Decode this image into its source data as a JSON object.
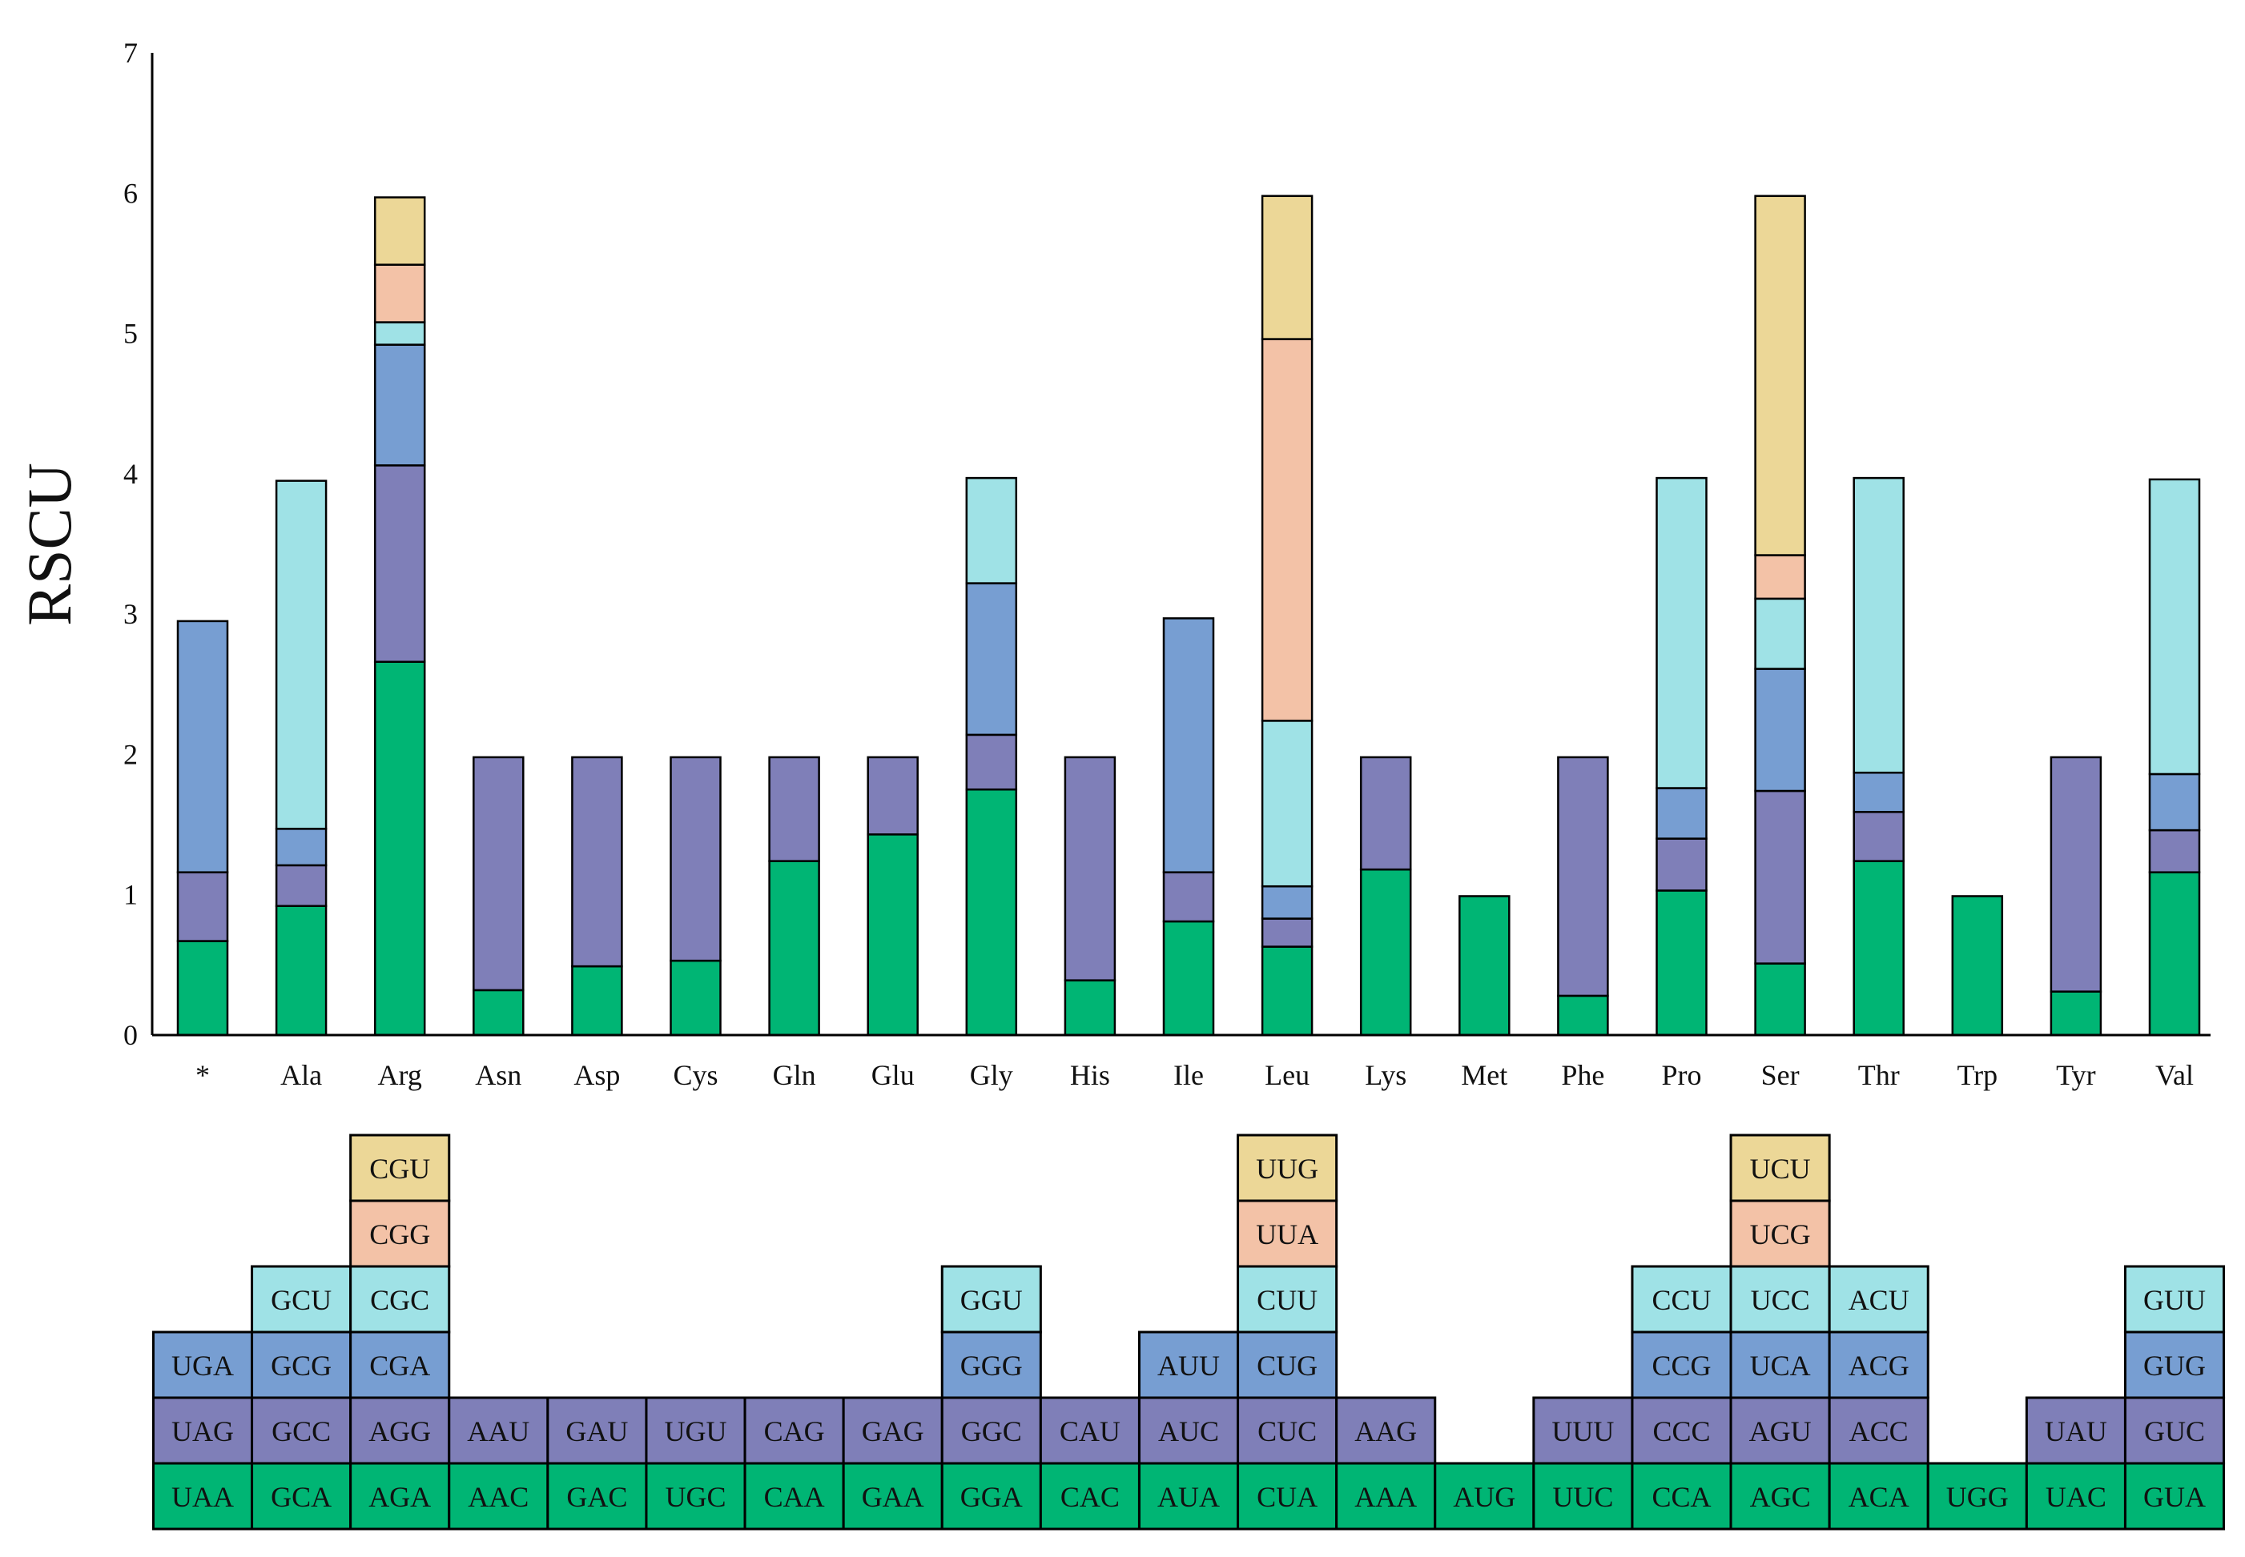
{
  "chart_data": {
    "type": "bar",
    "stacked": true,
    "title": "",
    "xlabel": "",
    "ylabel": "RSCU",
    "ylim": [
      0,
      7
    ],
    "yticks": [
      "0",
      "1",
      "2",
      "3",
      "4",
      "5",
      "6",
      "7"
    ],
    "categories": [
      "*",
      "Ala",
      "Arg",
      "Asn",
      "Asp",
      "Cys",
      "Gln",
      "Glu",
      "Gly",
      "His",
      "Ile",
      "Leu",
      "Lys",
      "Met",
      "Phe",
      "Pro",
      "Ser",
      "Thr",
      "Trp",
      "Tyr",
      "Val"
    ],
    "colors": [
      "#00b574",
      "#7f7fb8",
      "#779ed2",
      "#9fe2e6",
      "#f3c2a7",
      "#ecd797"
    ],
    "bars": [
      {
        "aa": "*",
        "stacks": [
          {
            "codon": "UAA",
            "value": 0.67
          },
          {
            "codon": "UAG",
            "value": 0.49
          },
          {
            "codon": "UGA",
            "value": 1.79
          }
        ]
      },
      {
        "aa": "Ala",
        "stacks": [
          {
            "codon": "GCA",
            "value": 0.92
          },
          {
            "codon": "GCC",
            "value": 0.29
          },
          {
            "codon": "GCG",
            "value": 0.26
          },
          {
            "codon": "GCU",
            "value": 2.48
          }
        ]
      },
      {
        "aa": "Arg",
        "stacks": [
          {
            "codon": "AGA",
            "value": 2.66
          },
          {
            "codon": "AGG",
            "value": 1.4
          },
          {
            "codon": "CGA",
            "value": 0.86
          },
          {
            "codon": "CGC",
            "value": 0.16
          },
          {
            "codon": "CGG",
            "value": 0.41
          },
          {
            "codon": "CGU",
            "value": 0.48
          }
        ]
      },
      {
        "aa": "Asn",
        "stacks": [
          {
            "codon": "AAC",
            "value": 0.32
          },
          {
            "codon": "AAU",
            "value": 1.66
          }
        ]
      },
      {
        "aa": "Asp",
        "stacks": [
          {
            "codon": "GAC",
            "value": 0.49
          },
          {
            "codon": "GAU",
            "value": 1.49
          }
        ]
      },
      {
        "aa": "Cys",
        "stacks": [
          {
            "codon": "UGC",
            "value": 0.53
          },
          {
            "codon": "UGU",
            "value": 1.45
          }
        ]
      },
      {
        "aa": "Gln",
        "stacks": [
          {
            "codon": "CAA",
            "value": 1.24
          },
          {
            "codon": "CAG",
            "value": 0.74
          }
        ]
      },
      {
        "aa": "Glu",
        "stacks": [
          {
            "codon": "GAA",
            "value": 1.43
          },
          {
            "codon": "GAG",
            "value": 0.55
          }
        ]
      },
      {
        "aa": "Gly",
        "stacks": [
          {
            "codon": "GGA",
            "value": 1.75
          },
          {
            "codon": "GGC",
            "value": 0.39
          },
          {
            "codon": "GGG",
            "value": 1.08
          },
          {
            "codon": "GGU",
            "value": 0.75
          }
        ]
      },
      {
        "aa": "His",
        "stacks": [
          {
            "codon": "CAC",
            "value": 0.39
          },
          {
            "codon": "CAU",
            "value": 1.59
          }
        ]
      },
      {
        "aa": "Ile",
        "stacks": [
          {
            "codon": "AUA",
            "value": 0.81
          },
          {
            "codon": "AUC",
            "value": 0.35
          },
          {
            "codon": "AUU",
            "value": 1.81
          }
        ]
      },
      {
        "aa": "Leu",
        "stacks": [
          {
            "codon": "CUA",
            "value": 0.63
          },
          {
            "codon": "CUC",
            "value": 0.2
          },
          {
            "codon": "CUG",
            "value": 0.23
          },
          {
            "codon": "CUU",
            "value": 1.18
          },
          {
            "codon": "UUA",
            "value": 2.72
          },
          {
            "codon": "UUG",
            "value": 1.02
          }
        ]
      },
      {
        "aa": "Lys",
        "stacks": [
          {
            "codon": "AAA",
            "value": 1.18
          },
          {
            "codon": "AAG",
            "value": 0.8
          }
        ]
      },
      {
        "aa": "Met",
        "stacks": [
          {
            "codon": "AUG",
            "value": 0.99
          }
        ]
      },
      {
        "aa": "Phe",
        "stacks": [
          {
            "codon": "UUC",
            "value": 0.28
          },
          {
            "codon": "UUU",
            "value": 1.7
          }
        ]
      },
      {
        "aa": "Pro",
        "stacks": [
          {
            "codon": "CCA",
            "value": 1.03
          },
          {
            "codon": "CCC",
            "value": 0.37
          },
          {
            "codon": "CCG",
            "value": 0.36
          },
          {
            "codon": "CCU",
            "value": 2.21
          }
        ]
      },
      {
        "aa": "Ser",
        "stacks": [
          {
            "codon": "AGC",
            "value": 0.51
          },
          {
            "codon": "AGU",
            "value": 1.23
          },
          {
            "codon": "UCA",
            "value": 0.87
          },
          {
            "codon": "UCC",
            "value": 0.5
          },
          {
            "codon": "UCG",
            "value": 0.31
          },
          {
            "codon": "UCU",
            "value": 2.56
          }
        ]
      },
      {
        "aa": "Thr",
        "stacks": [
          {
            "codon": "ACA",
            "value": 1.24
          },
          {
            "codon": "ACC",
            "value": 0.35
          },
          {
            "codon": "ACG",
            "value": 0.28
          },
          {
            "codon": "ACU",
            "value": 2.1
          }
        ]
      },
      {
        "aa": "Trp",
        "stacks": [
          {
            "codon": "UGG",
            "value": 0.99
          }
        ]
      },
      {
        "aa": "Tyr",
        "stacks": [
          {
            "codon": "UAC",
            "value": 0.31
          },
          {
            "codon": "UAU",
            "value": 1.67
          }
        ]
      },
      {
        "aa": "Val",
        "stacks": [
          {
            "codon": "GUA",
            "value": 1.16
          },
          {
            "codon": "GUC",
            "value": 0.3
          },
          {
            "codon": "GUG",
            "value": 0.4
          },
          {
            "codon": "GUU",
            "value": 2.1
          }
        ]
      }
    ]
  }
}
